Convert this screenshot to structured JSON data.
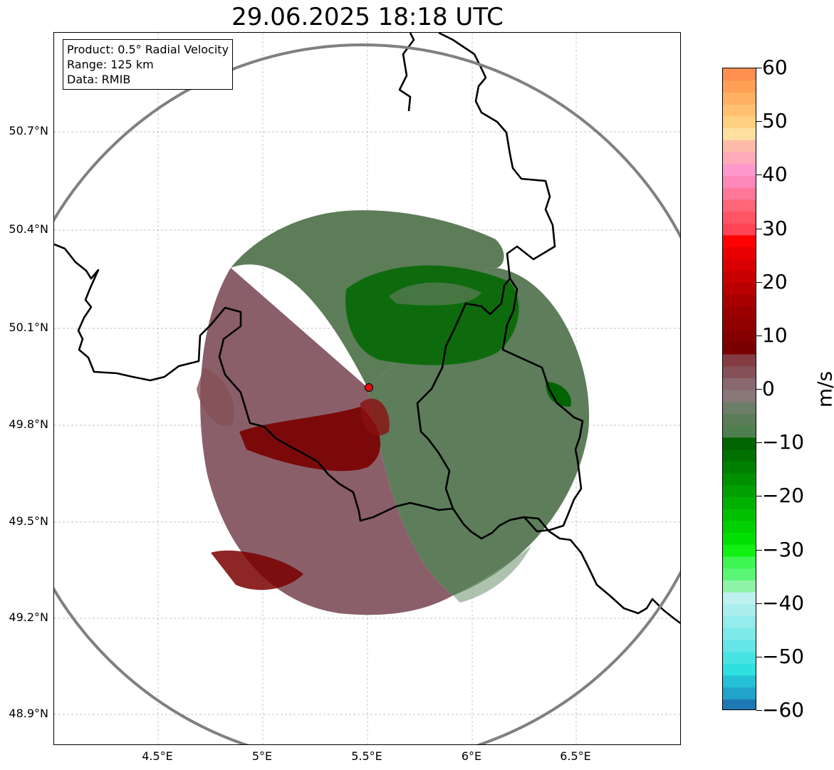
{
  "title": "29.06.2025 18:18 UTC",
  "info_box": {
    "product": "Product: 0.5° Radial Velocity",
    "range": "Range: 125 km",
    "data": "Data: RMIB"
  },
  "map": {
    "lon_range": [
      4.0,
      7.0
    ],
    "lat_range": [
      48.8,
      51.0
    ],
    "x_ticks": [
      "4.5°E",
      "5°E",
      "5.5°E",
      "6°E",
      "6.5°E"
    ],
    "y_ticks": [
      "50.7°N",
      "50.4°N",
      "50.1°N",
      "49.8°N",
      "49.5°N",
      "49.2°N",
      "48.9°N"
    ],
    "radar_site": {
      "lon": 5.505,
      "lat": 49.915
    },
    "range_km": 125,
    "colors": {
      "range_ring": "#808080",
      "border": "#000000",
      "radar_marker": "#e01010",
      "inbound_dark": "#006400",
      "outbound_dark": "#7a0000",
      "near_zero_green": "#5d7f5a",
      "near_zero_mauve": "#8a5f6a"
    }
  },
  "colorbar": {
    "unit": "m/s",
    "min": -60,
    "max": 60,
    "ticks": [
      "60",
      "50",
      "40",
      "30",
      "20",
      "10",
      "0",
      "−10",
      "−20",
      "−30",
      "−40",
      "−50",
      "−60"
    ],
    "bands": [
      "#1f77b4",
      "#22a3cc",
      "#24c1d6",
      "#2ee0e0",
      "#48e3e3",
      "#64e6e6",
      "#7de9e9",
      "#94ecec",
      "#aaeeee",
      "#bff0f0",
      "#90f4a8",
      "#5bf575",
      "#3ef552",
      "#11f011",
      "#00e000",
      "#00d000",
      "#00c000",
      "#00b000",
      "#00a000",
      "#009000",
      "#008000",
      "#007000",
      "#006400",
      "#4f7f4f",
      "#5a7d57",
      "#6d7e68",
      "#887877",
      "#8a6870",
      "#855058",
      "#843c42",
      "#7a0000",
      "#850000",
      "#900000",
      "#9b0000",
      "#a80000",
      "#b80000",
      "#c80000",
      "#d80000",
      "#e80000",
      "#ff0000",
      "#ff4455",
      "#ff5566",
      "#ff6677",
      "#ff7799",
      "#ff88bb",
      "#ff99cc",
      "#ffaabb",
      "#ffbbaa",
      "#ffe0a0",
      "#ffd080",
      "#ffc070",
      "#ffb060",
      "#ffa055",
      "#ff9050"
    ]
  }
}
